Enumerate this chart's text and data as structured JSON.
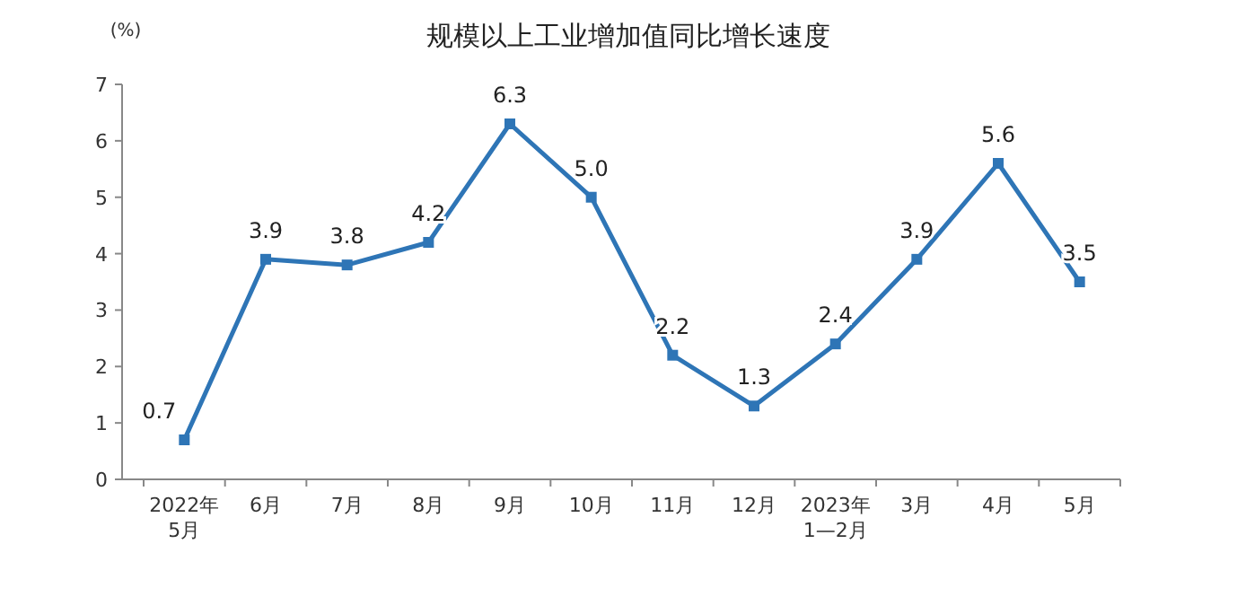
{
  "chart_data": {
    "type": "line",
    "title": "规模以上工业增加值同比增长速度",
    "ylabel": "(%)",
    "categories": [
      "2022年\n5月",
      "6月",
      "7月",
      "8月",
      "9月",
      "10月",
      "11月",
      "12月",
      "2023年\n1—2月",
      "3月",
      "4月",
      "5月"
    ],
    "series": [
      {
        "color": "#2e75b6",
        "values": [
          0.7,
          3.9,
          3.8,
          4.2,
          6.3,
          5.0,
          2.2,
          1.3,
          2.4,
          3.9,
          5.6,
          3.5
        ],
        "value_labels": [
          "0.7",
          "3.9",
          "3.8",
          "4.2",
          "6.3",
          "5.0",
          "2.2",
          "1.3",
          "2.4",
          "3.9",
          "5.6",
          "3.5"
        ]
      }
    ],
    "ylim": [
      0,
      7
    ],
    "yticks": [
      0,
      1,
      2,
      3,
      4,
      5,
      6,
      7
    ],
    "marker": "square",
    "line_style": "solid"
  }
}
